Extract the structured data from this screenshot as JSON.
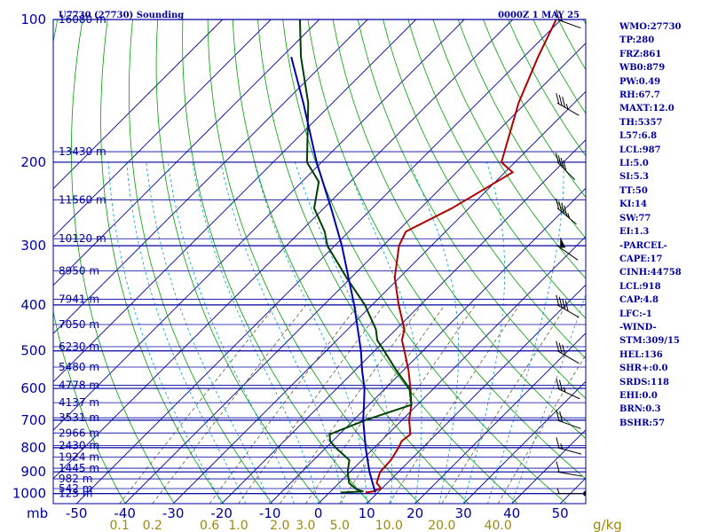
{
  "header": {
    "station_title": "U7730 (27730) Sounding",
    "valid_time": "0000Z  1 MAY 25"
  },
  "indices": [
    "WMO:27730",
    "TP:280",
    "FRZ:861",
    "WB0:879",
    "PW:0.49",
    "RH:67.7",
    "MAXT:12.0",
    "TH:5357",
    "L57:6.8",
    "LCL:987",
    "LI:5.0",
    "SI:5.3",
    "TT:50",
    "KI:14",
    "SW:77",
    "EI:1.3",
    "-PARCEL-",
    "CAPE:17",
    "CINH:44758",
    "LCL:918",
    "CAP:4.8",
    "LFC:-1",
    "-WIND-",
    "STM:309/15",
    "HEL:136",
    "SHR+:0.0",
    "SRDS:118",
    "EHI:0.0",
    "BRN:0.3",
    "BSHR:57"
  ],
  "colors": {
    "isobar": "#0000a0",
    "isotherm": "#0000a0",
    "dry_adiabat": "#00a000",
    "moist_adiabat": "#00a0c0",
    "mixing_ratio": "#606030",
    "temperature": "#b00000",
    "dewpoint": "#004000",
    "parcel": "#0000b0"
  },
  "chart_data": {
    "type": "line",
    "title": "U7730 (27730) Sounding",
    "subtitle": "0000Z  1 MAY 25",
    "y_scale": "log-pressure",
    "ylim_mb": [
      1050,
      100
    ],
    "xlim_c": [
      -50,
      60
    ],
    "pressure_ticks": [
      "1000",
      "900",
      "800",
      "700",
      "600",
      "500",
      "400",
      "300",
      "200",
      "100"
    ],
    "pressure_unit_label": "mb",
    "temperature_ticks": [
      "-50",
      "-40",
      "-30",
      "-20",
      "-10",
      "0",
      "10",
      "20",
      "30",
      "40",
      "50"
    ],
    "mixing_ratio_ticks": [
      "0.1",
      "0.2",
      "0.6",
      "1.0",
      "2.0",
      "3.0",
      "5.0",
      "10.0",
      "20.0",
      "40.0"
    ],
    "mixing_ratio_unit": "g/kg",
    "height_labels": [
      {
        "p": 1000,
        "label": "123 m"
      },
      {
        "p": 976,
        "label": "542 m"
      },
      {
        "p": 931,
        "label": "982 m"
      },
      {
        "p": 884,
        "label": "1445 m"
      },
      {
        "p": 838,
        "label": "1924 m"
      },
      {
        "p": 792,
        "label": "2430 m"
      },
      {
        "p": 745,
        "label": "2966 m"
      },
      {
        "p": 692,
        "label": "3531 m"
      },
      {
        "p": 643,
        "label": "4137 m"
      },
      {
        "p": 591,
        "label": "4778 m"
      },
      {
        "p": 541,
        "label": "5480 m"
      },
      {
        "p": 490,
        "label": "6230 m"
      },
      {
        "p": 440,
        "label": "7050 m"
      },
      {
        "p": 389,
        "label": "7941 m"
      },
      {
        "p": 339,
        "label": "8950 m"
      },
      {
        "p": 290,
        "label": "10120 m"
      },
      {
        "p": 240,
        "label": "11560 m"
      },
      {
        "p": 190,
        "label": "13430 m"
      },
      {
        "p": 100,
        "label": "16080 m"
      }
    ],
    "series": [
      {
        "role": "temperature",
        "points": [
          [
            995,
            7.5
          ],
          [
            990,
            8.8
          ],
          [
            975,
            9.8
          ],
          [
            950,
            7.8
          ],
          [
            900,
            6.2
          ],
          [
            850,
            6.0
          ],
          [
            800,
            5.0
          ],
          [
            775,
            4.3
          ],
          [
            750,
            4.7
          ],
          [
            700,
            1.5
          ],
          [
            650,
            -1.2
          ],
          [
            600,
            -4.8
          ],
          [
            550,
            -8.9
          ],
          [
            500,
            -13.8
          ],
          [
            475,
            -16.5
          ],
          [
            450,
            -18.3
          ],
          [
            400,
            -24.5
          ],
          [
            350,
            -31.0
          ],
          [
            300,
            -36.7
          ],
          [
            280,
            -38.2
          ],
          [
            250,
            -33.5
          ],
          [
            210,
            -28.4
          ],
          [
            200,
            -32.8
          ],
          [
            150,
            -41.5
          ],
          [
            120,
            -47.0
          ],
          [
            100,
            -51.0
          ]
        ]
      },
      {
        "role": "dewpoint",
        "points": [
          [
            995,
            2.4
          ],
          [
            990,
            6.8
          ],
          [
            980,
            5.0
          ],
          [
            950,
            2.1
          ],
          [
            900,
            -0.5
          ],
          [
            850,
            -2.6
          ],
          [
            800,
            -8.0
          ],
          [
            775,
            -10.5
          ],
          [
            750,
            -12.0
          ],
          [
            700,
            -7.5
          ],
          [
            650,
            -1.2
          ],
          [
            600,
            -5.0
          ],
          [
            550,
            -11.4
          ],
          [
            500,
            -18.0
          ],
          [
            475,
            -21.6
          ],
          [
            450,
            -24.2
          ],
          [
            400,
            -31.5
          ],
          [
            350,
            -41.0
          ],
          [
            300,
            -51.5
          ],
          [
            280,
            -55.0
          ],
          [
            250,
            -62.0
          ],
          [
            220,
            -66.5
          ],
          [
            200,
            -73.0
          ],
          [
            150,
            -85.0
          ],
          [
            120,
            -96.0
          ],
          [
            100,
            -104.0
          ]
        ]
      },
      {
        "role": "parcel",
        "points": [
          [
            995,
            9.5
          ],
          [
            900,
            4.0
          ],
          [
            800,
            -1.8
          ],
          [
            700,
            -8.0
          ],
          [
            650,
            -11.0
          ],
          [
            600,
            -14.3
          ],
          [
            550,
            -18.5
          ],
          [
            500,
            -22.8
          ],
          [
            400,
            -33.7
          ],
          [
            300,
            -48.5
          ],
          [
            250,
            -58.5
          ],
          [
            200,
            -71.0
          ],
          [
            150,
            -86.0
          ],
          [
            120,
            -98.0
          ]
        ]
      }
    ],
    "wind_barbs": [
      {
        "p": 1000,
        "dir": 270,
        "spd": 5
      },
      {
        "p": 900,
        "dir": 280,
        "spd": 10
      },
      {
        "p": 800,
        "dir": 285,
        "spd": 15
      },
      {
        "p": 700,
        "dir": 290,
        "spd": 20
      },
      {
        "p": 600,
        "dir": 295,
        "spd": 25
      },
      {
        "p": 500,
        "dir": 300,
        "spd": 30
      },
      {
        "p": 400,
        "dir": 300,
        "spd": 40
      },
      {
        "p": 300,
        "dir": 305,
        "spd": 50
      },
      {
        "p": 250,
        "dir": 310,
        "spd": 45
      },
      {
        "p": 200,
        "dir": 315,
        "spd": 40
      },
      {
        "p": 150,
        "dir": 300,
        "spd": 35
      },
      {
        "p": 100,
        "dir": 290,
        "spd": 15
      }
    ]
  }
}
